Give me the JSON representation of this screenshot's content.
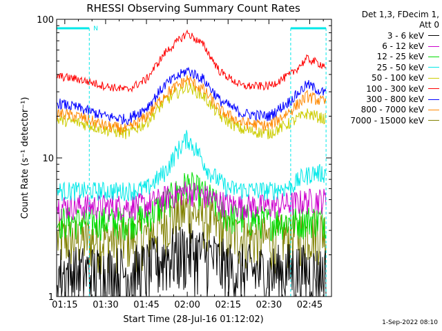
{
  "chart_data": {
    "type": "line",
    "title": "RHESSI Observing Summary Count Rates",
    "xlabel": "Start Time (28-Jul-16 01:12:02)",
    "ylabel": "Count Rate (s⁻¹ detector⁻¹)",
    "y_scale": "log",
    "ylim": [
      1,
      100
    ],
    "xlim_minutes": [
      72,
      173
    ],
    "x_ticks": [
      {
        "label": "01:15",
        "minute": 75
      },
      {
        "label": "01:30",
        "minute": 90
      },
      {
        "label": "01:45",
        "minute": 105
      },
      {
        "label": "02:00",
        "minute": 120
      },
      {
        "label": "02:15",
        "minute": 135
      },
      {
        "label": "02:30",
        "minute": 150
      },
      {
        "label": "02:45",
        "minute": 165
      }
    ],
    "y_ticks": [
      {
        "label": "1",
        "value": 1
      },
      {
        "label": "10",
        "value": 10
      },
      {
        "label": "100",
        "value": 100
      }
    ],
    "legend": {
      "placement": "right",
      "header": [
        "Det 1,3, FDecim 1,",
        "Att 0"
      ]
    },
    "flags": {
      "night_intervals_minutes": [
        [
          72,
          84
        ],
        [
          158,
          171
        ]
      ],
      "saa_marker": "N"
    },
    "series": [
      {
        "name": "3 - 6 keV",
        "color": "#000000",
        "x": [
          72,
          98,
          105,
          112,
          120,
          128,
          135,
          150,
          158,
          166,
          171
        ],
        "y": [
          1.5,
          1.5,
          1.6,
          2.0,
          2.2,
          2.0,
          1.6,
          1.5,
          1.6,
          1.5,
          1.5
        ]
      },
      {
        "name": "6 - 12 keV",
        "color": "#cc00cc",
        "x": [
          72,
          98,
          105,
          112,
          120,
          128,
          135,
          150,
          158,
          166,
          171
        ],
        "y": [
          4.5,
          4.5,
          4.6,
          5.2,
          5.8,
          5.2,
          4.6,
          4.5,
          4.7,
          5.0,
          5.0
        ]
      },
      {
        "name": "12 - 25 keV",
        "color": "#00dd00",
        "x": [
          72,
          98,
          105,
          112,
          120,
          128,
          135,
          150,
          158,
          166,
          171
        ],
        "y": [
          3.5,
          3.5,
          3.8,
          4.8,
          6.5,
          5.2,
          3.8,
          3.5,
          3.5,
          3.6,
          3.6
        ]
      },
      {
        "name": "25 - 50 keV",
        "color": "#00e8e8",
        "x": [
          72,
          98,
          105,
          112,
          116,
          120,
          124,
          128,
          135,
          150,
          158,
          162,
          166,
          171
        ],
        "y": [
          5.8,
          5.8,
          6.0,
          8.0,
          11.0,
          14.0,
          11.0,
          8.0,
          6.0,
          5.8,
          6.2,
          7.2,
          7.8,
          7.8
        ]
      },
      {
        "name": "50 - 100 keV",
        "color": "#cccc00",
        "x": [
          72,
          80,
          90,
          98,
          105,
          112,
          120,
          126,
          132,
          140,
          150,
          158,
          164,
          171
        ],
        "y": [
          19,
          18,
          16,
          15,
          18,
          26,
          33,
          28,
          20,
          16,
          15,
          18,
          21,
          19
        ]
      },
      {
        "name": "100 - 300 keV",
        "color": "#ff0000",
        "x": [
          72,
          80,
          90,
          98,
          105,
          112,
          120,
          126,
          132,
          140,
          150,
          158,
          164,
          171
        ],
        "y": [
          39,
          37,
          33,
          31,
          37,
          58,
          80,
          65,
          42,
          33,
          33,
          40,
          52,
          46
        ]
      },
      {
        "name": "300 - 800 keV",
        "color": "#0000ff",
        "x": [
          72,
          80,
          90,
          98,
          105,
          112,
          120,
          126,
          132,
          140,
          150,
          158,
          164,
          171
        ],
        "y": [
          25,
          23,
          20,
          19,
          23,
          34,
          43,
          37,
          26,
          21,
          20,
          26,
          34,
          29
        ]
      },
      {
        "name": "800 - 7000 keV",
        "color": "#ff8800",
        "x": [
          72,
          80,
          90,
          98,
          105,
          112,
          120,
          126,
          132,
          140,
          150,
          158,
          164,
          171
        ],
        "y": [
          21,
          20,
          17,
          16,
          20,
          29,
          37,
          31,
          22,
          18,
          17,
          22,
          28,
          25
        ]
      },
      {
        "name": "7000 - 15000 keV",
        "color": "#808000",
        "x": [
          72,
          98,
          105,
          112,
          120,
          128,
          135,
          150,
          158,
          166,
          171
        ],
        "y": [
          2.6,
          2.6,
          2.8,
          3.5,
          4.3,
          3.6,
          2.8,
          2.6,
          2.8,
          3.0,
          3.0
        ]
      }
    ]
  },
  "footer": {
    "timestamp": "1-Sep-2022 08:10"
  }
}
